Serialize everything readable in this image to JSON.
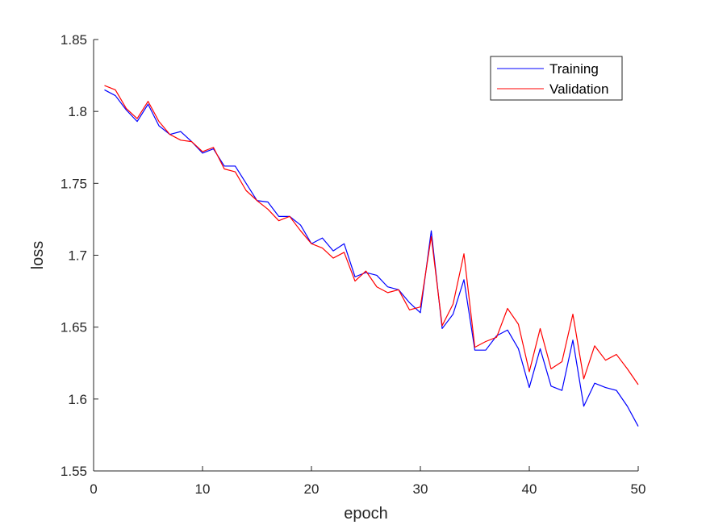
{
  "chart_data": {
    "type": "line",
    "title": "",
    "xlabel": "epoch",
    "ylabel": "loss",
    "xlim": [
      0,
      50
    ],
    "ylim": [
      1.55,
      1.85
    ],
    "xticks": [
      0,
      10,
      20,
      30,
      40,
      50
    ],
    "xtick_labels": [
      "0",
      "10",
      "20",
      "30",
      "40",
      "50"
    ],
    "yticks": [
      1.55,
      1.6,
      1.65,
      1.7,
      1.75,
      1.8,
      1.85
    ],
    "ytick_labels": [
      "1.55",
      "1.6",
      "1.65",
      "1.7",
      "1.75",
      "1.8",
      "1.85"
    ],
    "grid": false,
    "legend_position": "top-right",
    "x": [
      1,
      2,
      3,
      4,
      5,
      6,
      7,
      8,
      9,
      10,
      11,
      12,
      13,
      14,
      15,
      16,
      17,
      18,
      19,
      20,
      21,
      22,
      23,
      24,
      25,
      26,
      27,
      28,
      29,
      30,
      31,
      32,
      33,
      34,
      35,
      36,
      37,
      38,
      39,
      40,
      41,
      42,
      43,
      44,
      45,
      46,
      47,
      48,
      49,
      50
    ],
    "series": [
      {
        "name": "Training",
        "color": "#0000ff",
        "values": [
          1.815,
          1.811,
          1.801,
          1.793,
          1.805,
          1.79,
          1.784,
          1.786,
          1.779,
          1.771,
          1.774,
          1.762,
          1.762,
          1.75,
          1.738,
          1.737,
          1.727,
          1.727,
          1.721,
          1.708,
          1.712,
          1.703,
          1.708,
          1.685,
          1.688,
          1.686,
          1.678,
          1.676,
          1.667,
          1.66,
          1.717,
          1.649,
          1.659,
          1.683,
          1.634,
          1.634,
          1.644,
          1.648,
          1.635,
          1.608,
          1.635,
          1.609,
          1.606,
          1.641,
          1.595,
          1.611,
          1.608,
          1.606,
          1.595,
          1.581
        ]
      },
      {
        "name": "Validation",
        "color": "#ff0000",
        "values": [
          1.818,
          1.815,
          1.802,
          1.795,
          1.807,
          1.793,
          1.784,
          1.78,
          1.779,
          1.772,
          1.775,
          1.76,
          1.758,
          1.745,
          1.738,
          1.732,
          1.724,
          1.727,
          1.717,
          1.708,
          1.705,
          1.698,
          1.702,
          1.682,
          1.689,
          1.678,
          1.674,
          1.676,
          1.662,
          1.664,
          1.713,
          1.651,
          1.666,
          1.701,
          1.636,
          1.64,
          1.643,
          1.663,
          1.652,
          1.619,
          1.649,
          1.621,
          1.626,
          1.659,
          1.614,
          1.637,
          1.627,
          1.631,
          1.621,
          1.61
        ]
      }
    ]
  }
}
